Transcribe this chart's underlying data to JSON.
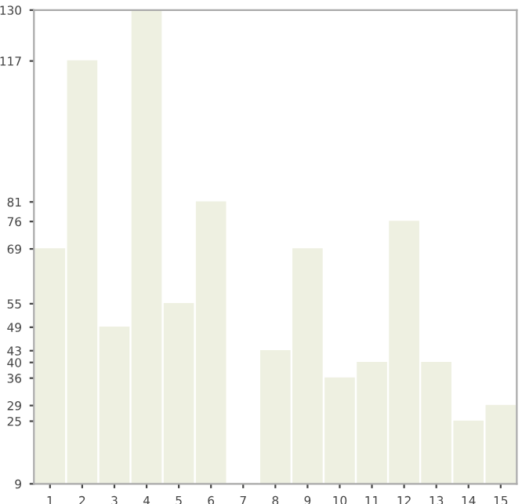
{
  "chart_data": {
    "type": "bar",
    "categories": [
      "1",
      "2",
      "3",
      "4",
      "5",
      "6",
      "7",
      "8",
      "9",
      "10",
      "11",
      "12",
      "13",
      "14",
      "15"
    ],
    "values": [
      69,
      117,
      49,
      130,
      55,
      81,
      9,
      43,
      69,
      36,
      40,
      76,
      40,
      25,
      29
    ],
    "color": "#eef0e1",
    "ylim": [
      9,
      130
    ],
    "yticks": [
      9,
      25,
      29,
      36,
      40,
      43,
      49,
      55,
      69,
      76,
      81,
      117,
      130
    ],
    "grid": false,
    "legend": false
  }
}
